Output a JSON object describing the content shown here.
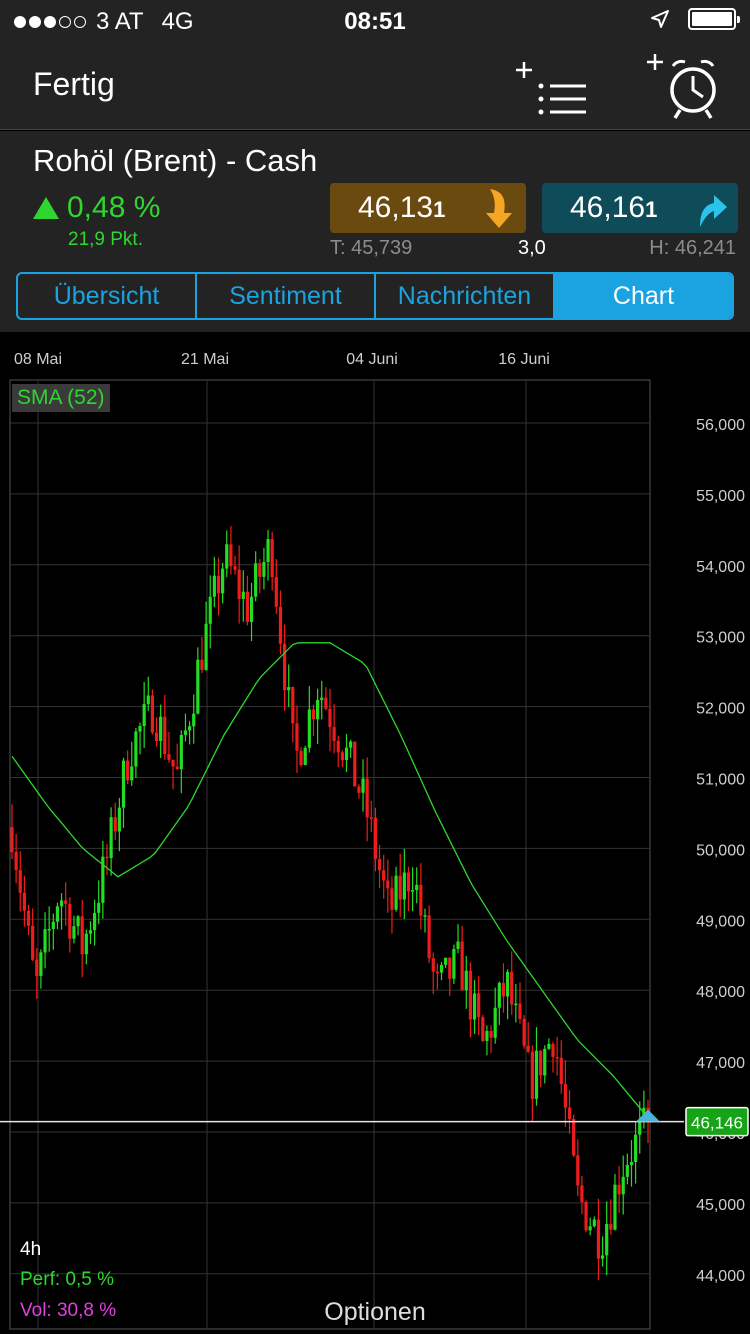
{
  "status_bar": {
    "carrier": "3 AT",
    "network": "4G",
    "time": "08:51",
    "signal_bars": 3
  },
  "nav": {
    "done_label": "Fertig",
    "watchlist_add_icon": "add-watchlist-icon",
    "alarm_add_icon": "add-alarm-icon"
  },
  "instrument": {
    "name": "Rohöl (Brent) - Cash",
    "change_percent": "0,48 %",
    "change_points": "21,9 Pkt.",
    "sell_price": "46,13",
    "sell_price_small": "1",
    "buy_price": "46,16",
    "buy_price_small": "1",
    "low": "T: 45,739",
    "spread": "3,0",
    "high": "H: 46,241",
    "colors": {
      "sell_bg": "#6b4a10",
      "buy_bg": "#0f4c5a",
      "positive": "#2fd62f"
    }
  },
  "tabs": [
    {
      "label": "Übersicht",
      "active": false
    },
    {
      "label": "Sentiment",
      "active": false
    },
    {
      "label": "Nachrichten",
      "active": false
    },
    {
      "label": "Chart",
      "active": true
    }
  ],
  "chart": {
    "indicator_label": "SMA (52)",
    "timeframe": "4h",
    "perf": "Perf: 0,5 %",
    "vol": "Vol: 30,8 %",
    "options_label": "Optionen",
    "current_price_label": "46,146"
  },
  "chart_data": {
    "type": "candlestick",
    "interval": "4h",
    "x_tick_labels": [
      "08 Mai",
      "21 Mai",
      "04 Juni",
      "16 Juni"
    ],
    "y_tick_labels": [
      "56,000",
      "55,000",
      "54,000",
      "53,000",
      "52,000",
      "51,000",
      "50,000",
      "49,000",
      "48,000",
      "47,000",
      "46,000",
      "45,000",
      "44,000"
    ],
    "y_ticks": [
      56,
      55,
      54,
      53,
      52,
      51,
      50,
      49,
      48,
      47,
      46,
      45,
      44
    ],
    "ylim": [
      43.8,
      56.6
    ],
    "current_price": 46.146,
    "indicator": "SMA (52)",
    "price_path": [
      50.3,
      48.0,
      49.4,
      48.6,
      49.8,
      51.4,
      52.0,
      51.0,
      52.7,
      54.1,
      53.4,
      54.3,
      51.2,
      52.3,
      51.5,
      50.6,
      49.1,
      49.7,
      48.0,
      48.4,
      47.2,
      48.1,
      46.7,
      47.4,
      45.1,
      44.5,
      45.6,
      46.1
    ],
    "sma_path": [
      51.3,
      50.6,
      50.0,
      49.6,
      49.9,
      50.6,
      51.6,
      52.4,
      52.9,
      52.9,
      52.6,
      51.6,
      50.5,
      49.5,
      48.7,
      48.0,
      47.3,
      46.8,
      46.2
    ],
    "grid": true
  }
}
